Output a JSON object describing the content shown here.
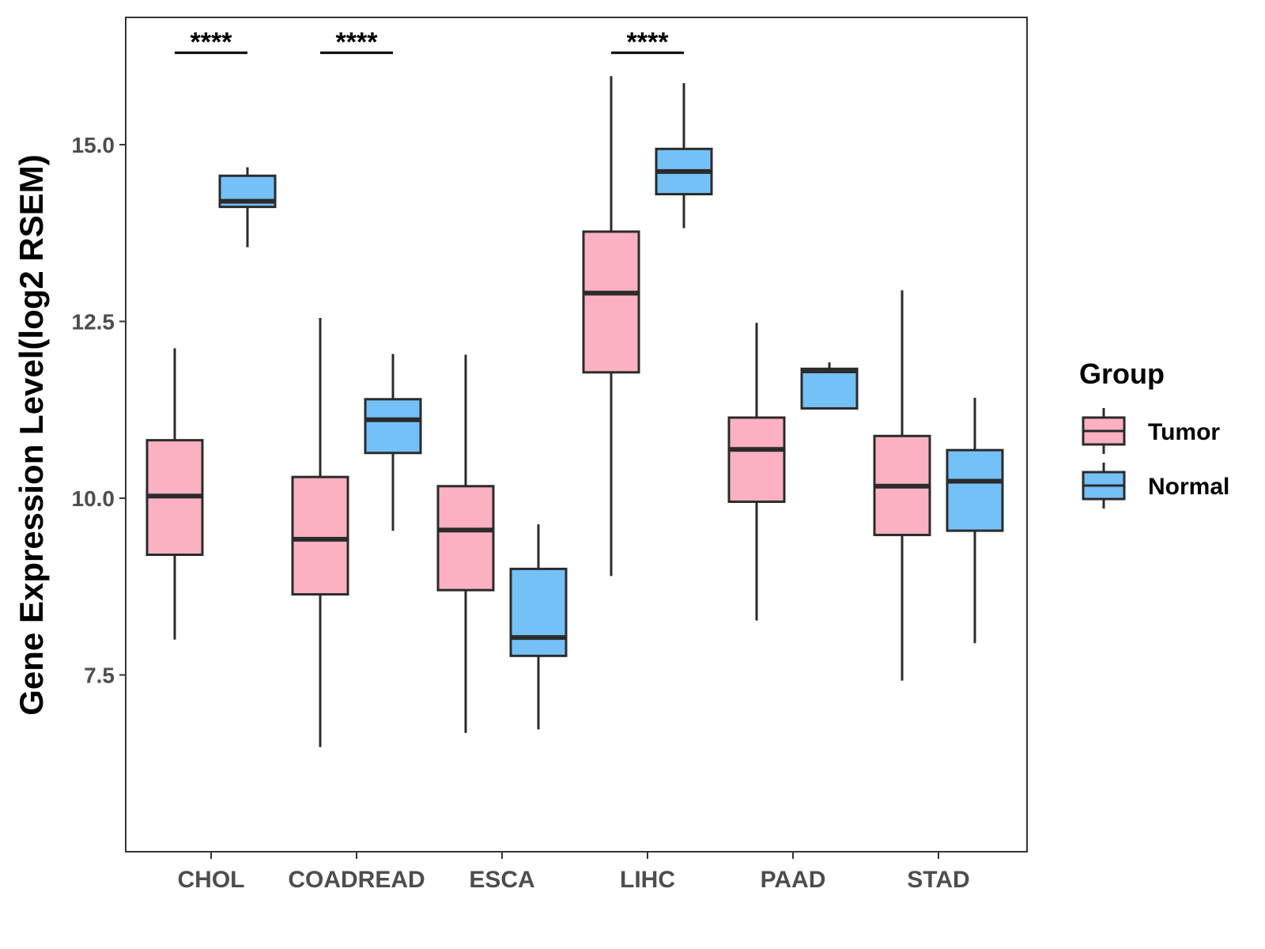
{
  "chart_data": {
    "type": "boxplot",
    "ylabel": "Gene Expression Level(log2 RSEM)",
    "xlabel": "",
    "ylim": [
      5.0,
      16.8
    ],
    "yticks": [
      7.5,
      10.0,
      12.5,
      15.0
    ],
    "ytick_labels": [
      "7.5",
      "10.0",
      "12.5",
      "15.0"
    ],
    "categories": [
      "CHOL",
      "COADREAD",
      "ESCA",
      "LIHC",
      "PAAD",
      "STAD"
    ],
    "legend": {
      "title": "Group",
      "position": "right",
      "entries": [
        {
          "name": "Tumor",
          "color": "#FBB1C1"
        },
        {
          "name": "Normal",
          "color": "#74C1F8"
        }
      ]
    },
    "series": [
      {
        "name": "Tumor",
        "color": "#FBB1C1",
        "boxes": [
          {
            "category": "CHOL",
            "min": 8.0,
            "q1": 9.2,
            "median": 10.03,
            "q3": 10.82,
            "max": 12.12
          },
          {
            "category": "COADREAD",
            "min": 6.48,
            "q1": 8.64,
            "median": 9.42,
            "q3": 10.3,
            "max": 12.55
          },
          {
            "category": "ESCA",
            "min": 6.68,
            "q1": 8.7,
            "median": 9.55,
            "q3": 10.17,
            "max": 12.03
          },
          {
            "category": "LIHC",
            "min": 8.9,
            "q1": 11.78,
            "median": 12.9,
            "q3": 13.77,
            "max": 15.97
          },
          {
            "category": "PAAD",
            "min": 8.27,
            "q1": 9.95,
            "median": 10.69,
            "q3": 11.14,
            "max": 12.48
          },
          {
            "category": "STAD",
            "min": 7.42,
            "q1": 9.48,
            "median": 10.17,
            "q3": 10.88,
            "max": 12.94
          }
        ]
      },
      {
        "name": "Normal",
        "color": "#74C1F8",
        "boxes": [
          {
            "category": "CHOL",
            "min": 13.55,
            "q1": 14.12,
            "median": 14.2,
            "q3": 14.56,
            "max": 14.68
          },
          {
            "category": "COADREAD",
            "min": 9.54,
            "q1": 10.64,
            "median": 11.11,
            "q3": 11.4,
            "max": 12.04
          },
          {
            "category": "ESCA",
            "min": 6.73,
            "q1": 7.77,
            "median": 8.03,
            "q3": 9.0,
            "max": 9.63
          },
          {
            "category": "LIHC",
            "min": 13.82,
            "q1": 14.3,
            "median": 14.62,
            "q3": 14.94,
            "max": 15.87
          },
          {
            "category": "PAAD",
            "min": 11.27,
            "q1": 11.27,
            "median": 11.8,
            "q3": 11.83,
            "max": 11.92
          },
          {
            "category": "STAD",
            "min": 7.95,
            "q1": 9.54,
            "median": 10.24,
            "q3": 10.68,
            "max": 11.42
          }
        ]
      }
    ],
    "annotations": [
      {
        "category": "CHOL",
        "text": "****",
        "y": 16.3
      },
      {
        "category": "COADREAD",
        "text": "****",
        "y": 16.3
      },
      {
        "category": "LIHC",
        "text": "****",
        "y": 16.3
      }
    ]
  }
}
